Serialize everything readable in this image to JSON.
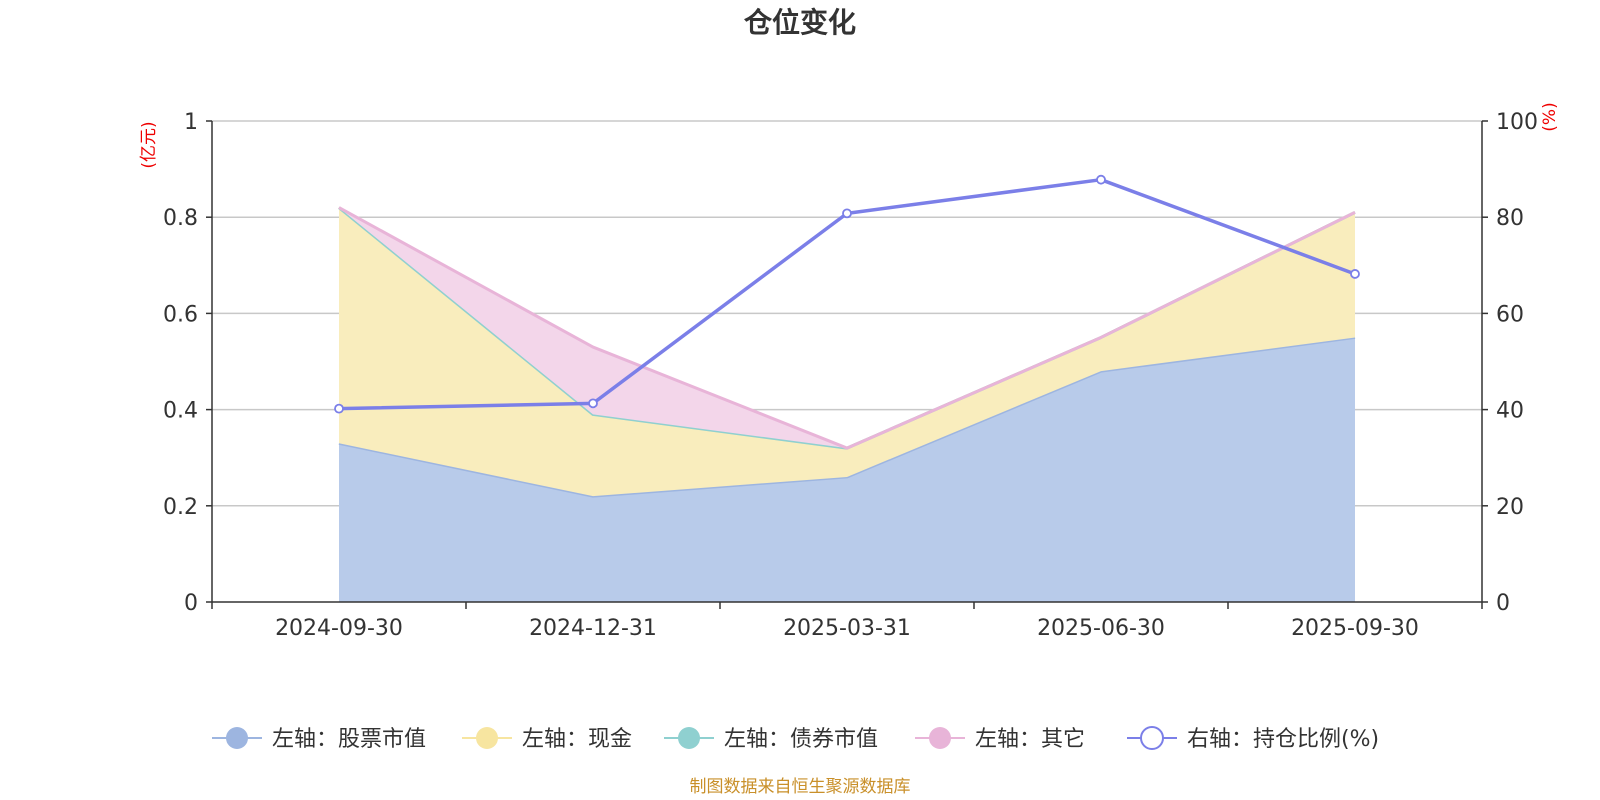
{
  "chart_data": {
    "type": "area",
    "title": "仓位变化",
    "x": [
      "2024-09-30",
      "2024-12-31",
      "2025-03-31",
      "2025-06-30",
      "2025-09-30"
    ],
    "left_axis": {
      "unit": "(亿元)",
      "ylim": [
        0,
        1
      ],
      "ticks": [
        "0",
        "0.2",
        "0.4",
        "0.6",
        "0.8",
        "1"
      ],
      "tick_values": [
        0,
        0.2,
        0.4,
        0.6,
        0.8,
        1
      ]
    },
    "right_axis": {
      "unit": "(%)",
      "ylim": [
        0,
        100
      ],
      "ticks": [
        "0",
        "20",
        "40",
        "60",
        "80",
        "100"
      ],
      "tick_values": [
        0,
        20,
        40,
        60,
        80,
        100
      ]
    },
    "series": [
      {
        "name": "左轴：股票市值",
        "axis": "left",
        "kind": "stacked-area",
        "color": "#9db5e0",
        "fill": "#b8cbea",
        "values": [
          0.33,
          0.22,
          0.26,
          0.48,
          0.55
        ]
      },
      {
        "name": "左轴：现金",
        "axis": "left",
        "kind": "stacked-area",
        "color": "#f7e5a0",
        "fill": "#f9edbd",
        "values": [
          0.49,
          0.17,
          0.06,
          0.07,
          0.26
        ]
      },
      {
        "name": "左轴：债券市值",
        "axis": "left",
        "kind": "stacked-area",
        "color": "#8fd0d0",
        "fill": "#bfe6e6",
        "values": [
          0,
          0,
          0,
          0,
          0
        ]
      },
      {
        "name": "左轴：其它",
        "axis": "left",
        "kind": "stacked-area",
        "color": "#e8b4d8",
        "fill": "#f3d6ea",
        "values": [
          0,
          0.14,
          0,
          0,
          0
        ]
      },
      {
        "name": "右轴：持仓比例(%)",
        "axis": "right",
        "kind": "line",
        "color": "#7b7fe8",
        "values": [
          40.2,
          41.3,
          80.8,
          87.8,
          68.2
        ]
      }
    ],
    "grid": true,
    "legend_position": "bottom"
  },
  "footer": {
    "source": "制图数据来自恒生聚源数据库"
  }
}
